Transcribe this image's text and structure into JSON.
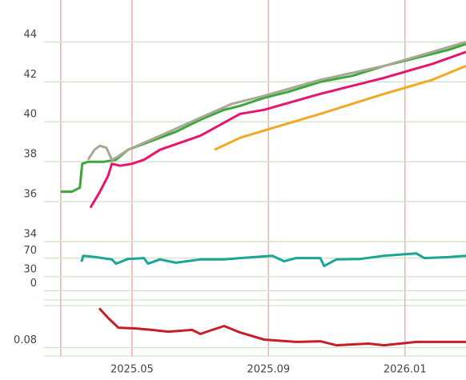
{
  "chart_data": [
    {
      "type": "line",
      "ylim": [
        34,
        46.1
      ],
      "yticks": [
        34,
        36,
        38,
        40,
        42,
        44
      ],
      "series": [
        {
          "color": "#3aa83a",
          "x": [
            1.91,
            2.24,
            2.47,
            2.54,
            2.71,
            3.18,
            3.53,
            3.88,
            4.35,
            4.82,
            5.29,
            6.0,
            6.7,
            7.17,
            7.87,
            8.58,
            9.52,
            10.46,
            11.39,
            12.33,
            13.27,
            13.79
          ],
          "values": [
            36.5,
            36.5,
            36.7,
            37.9,
            38.0,
            38.0,
            38.1,
            38.6,
            38.9,
            39.2,
            39.5,
            40.1,
            40.6,
            40.8,
            41.2,
            41.5,
            42.0,
            42.3,
            42.8,
            43.2,
            43.6,
            43.9
          ]
        },
        {
          "color": "#a8a894",
          "x": [
            2.71,
            2.9,
            3.06,
            3.25,
            3.41,
            3.53,
            3.88,
            4.82,
            6.0,
            6.93,
            7.87,
            9.52,
            11.39,
            12.8,
            13.79
          ],
          "values": [
            38.1,
            38.6,
            38.8,
            38.7,
            38.1,
            38.2,
            38.6,
            39.3,
            40.2,
            40.9,
            41.3,
            42.1,
            42.8,
            43.5,
            44.0
          ]
        },
        {
          "color": "#e8156f",
          "x": [
            2.78,
            3.06,
            3.3,
            3.41,
            3.65,
            4.0,
            4.35,
            4.82,
            6.0,
            7.17,
            7.87,
            9.52,
            11.39,
            12.8,
            13.79
          ],
          "values": [
            35.7,
            36.5,
            37.3,
            37.9,
            37.8,
            37.9,
            38.1,
            38.6,
            39.3,
            40.4,
            40.6,
            41.4,
            42.2,
            42.9,
            43.5
          ]
        },
        {
          "color": "#f5a623",
          "x": [
            6.42,
            7.17,
            8.34,
            9.52,
            11.39,
            12.8,
            13.79
          ],
          "values": [
            38.6,
            39.2,
            39.8,
            40.4,
            41.4,
            42.1,
            42.8
          ]
        }
      ]
    },
    {
      "type": "line",
      "ylim": [
        -20,
        95
      ],
      "yticks": [
        0,
        30,
        70
      ],
      "series": [
        {
          "color": "#1aa596",
          "x": [
            2.52,
            2.57,
            2.94,
            3.41,
            3.53,
            3.88,
            4.35,
            4.47,
            4.82,
            5.29,
            6.0,
            6.7,
            7.17,
            8.11,
            8.46,
            8.81,
            9.52,
            9.63,
            9.99,
            10.69,
            11.39,
            12.33,
            12.57,
            13.27,
            13.79
          ],
          "values": [
            62,
            75,
            72,
            67,
            58,
            68,
            70,
            58,
            67,
            60,
            67,
            67,
            70,
            75,
            63,
            70,
            70,
            53,
            67,
            68,
            75,
            80,
            70,
            72,
            75
          ]
        }
      ]
    },
    {
      "type": "line",
      "ylim": [
        0.076,
        0.1
      ],
      "yticks": [
        0.08
      ],
      "xlim": [
        0.13,
        13.79
      ],
      "xticks": [
        {
          "value": 1.91,
          "label": null
        },
        {
          "value": 4,
          "label": "2025.05"
        },
        {
          "value": 8,
          "label": "2025.09"
        },
        {
          "value": 12,
          "label": "2026.01"
        }
      ],
      "series": [
        {
          "color": "#c81e28",
          "x": [
            3.04,
            3.3,
            3.6,
            4.12,
            4.59,
            5.06,
            5.76,
            6.0,
            6.7,
            7.17,
            7.87,
            8.81,
            9.52,
            9.99,
            10.93,
            11.39,
            12.33,
            13.79
          ],
          "values": [
            0.0987,
            0.0941,
            0.0895,
            0.0891,
            0.0884,
            0.0876,
            0.0884,
            0.0865,
            0.0903,
            0.0872,
            0.0838,
            0.0827,
            0.083,
            0.0811,
            0.0819,
            0.0811,
            0.0827,
            0.0827
          ]
        }
      ]
    }
  ]
}
